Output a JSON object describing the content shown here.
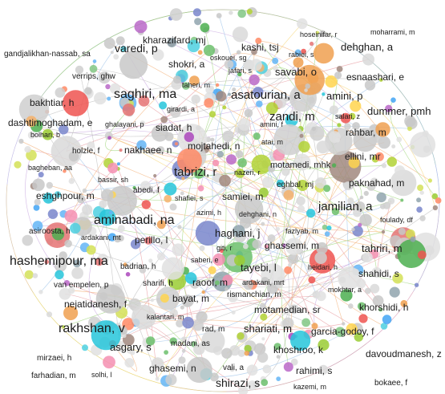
{
  "network": {
    "labels": [
      {
        "text": "moharrami, m",
        "size": "xs",
        "color": "#1a1a1a"
      },
      {
        "text": "hoseinifar, r",
        "size": "xs",
        "color": "#1a1a1a"
      },
      {
        "text": "kharazifard, mj",
        "size": "m",
        "color": "#1a1a1a"
      },
      {
        "text": "varedi, p",
        "size": "l",
        "color": "#1a1a1a"
      },
      {
        "text": "kashi, tsj",
        "size": "m",
        "color": "#1a1a1a"
      },
      {
        "text": "dehghan, a",
        "size": "m",
        "color": "#1a1a1a"
      },
      {
        "text": "gandjalikhan-nassab, sa",
        "size": "s",
        "color": "#1a1a1a"
      },
      {
        "text": "rabiei, s",
        "size": "xs",
        "color": "#1a1a1a"
      },
      {
        "text": "shokri, a",
        "size": "m",
        "color": "#1a1a1a"
      },
      {
        "text": "oskouei, sg",
        "size": "xs",
        "color": "#1a1a1a"
      },
      {
        "text": "verrips, ghw",
        "size": "s",
        "color": "#1a1a1a"
      },
      {
        "text": "jafari, s",
        "size": "xs",
        "color": "#1a1a1a"
      },
      {
        "text": "savabi, o",
        "size": "m",
        "color": "#1a1a1a"
      },
      {
        "text": "esnaashari, e",
        "size": "m",
        "color": "#1a1a1a"
      },
      {
        "text": "taheri, m",
        "size": "xs",
        "color": "#1a1a1a"
      },
      {
        "text": "saghiri, ma",
        "size": "xl",
        "color": "#1a1a1a"
      },
      {
        "text": "asatourian, a",
        "size": "l",
        "color": "#1a1a1a"
      },
      {
        "text": "amini, p",
        "size": "m",
        "color": "#1a1a1a"
      },
      {
        "text": "bakhtiar, h",
        "size": "m",
        "color": "#1a1a1a"
      },
      {
        "text": "girardi, a",
        "size": "xs",
        "color": "#1a1a1a"
      },
      {
        "text": "dummer, pmh",
        "size": "m",
        "color": "#1a1a1a"
      },
      {
        "text": "dashtimoghadam, e",
        "size": "m",
        "color": "#1a1a1a"
      },
      {
        "text": "ghalayani, p",
        "size": "xs",
        "color": "#1a1a1a"
      },
      {
        "text": "siadat, h",
        "size": "m",
        "color": "#1a1a1a"
      },
      {
        "text": "zandi, m",
        "size": "l",
        "color": "#1a1a1a"
      },
      {
        "text": "salari, z",
        "size": "xs",
        "color": "#1a1a1a"
      },
      {
        "text": "amini, f",
        "size": "xs",
        "color": "#1a1a1a"
      },
      {
        "text": "bolhari, b",
        "size": "xs",
        "color": "#1a1a1a"
      },
      {
        "text": "rahbar, m",
        "size": "m",
        "color": "#1a1a1a"
      },
      {
        "text": "atai, m",
        "size": "xs",
        "color": "#1a1a1a"
      },
      {
        "text": "holzle, f",
        "size": "s",
        "color": "#1a1a1a"
      },
      {
        "text": "nakhaee, n",
        "size": "m",
        "color": "#1a1a1a"
      },
      {
        "text": "mojtahedi, n",
        "size": "m",
        "color": "#1a1a1a"
      },
      {
        "text": "ellini, mr",
        "size": "m",
        "color": "#1a1a1a"
      },
      {
        "text": "motamedi, mhk",
        "size": "s",
        "color": "#1a1a1a"
      },
      {
        "text": "bagheban, aa",
        "size": "xs",
        "color": "#1a1a1a"
      },
      {
        "text": "tabrizi, r",
        "size": "l",
        "color": "#1a1a1a"
      },
      {
        "text": "nazeri, r",
        "size": "xs",
        "color": "#1a1a1a"
      },
      {
        "text": "bassir, sh",
        "size": "xs",
        "color": "#1a1a1a"
      },
      {
        "text": "paknahad, m",
        "size": "m",
        "color": "#1a1a1a"
      },
      {
        "text": "eshghpour, m",
        "size": "m",
        "color": "#1a1a1a"
      },
      {
        "text": "abedi, f",
        "size": "s",
        "color": "#1a1a1a"
      },
      {
        "text": "eghbal, mj",
        "size": "s",
        "color": "#1a1a1a"
      },
      {
        "text": "samiei, m",
        "size": "m",
        "color": "#1a1a1a"
      },
      {
        "text": "shafiei, s",
        "size": "xs",
        "color": "#1a1a1a"
      },
      {
        "text": "jamilian, a",
        "size": "l",
        "color": "#1a1a1a"
      },
      {
        "text": "dehghani, n",
        "size": "xs",
        "color": "#1a1a1a"
      },
      {
        "text": "aminabadi, na",
        "size": "xl",
        "color": "#1a1a1a"
      },
      {
        "text": "azimi, h",
        "size": "xs",
        "color": "#1a1a1a"
      },
      {
        "text": "foulady, df",
        "size": "xs",
        "color": "#1a1a1a"
      },
      {
        "text": "asiroosta, h",
        "size": "s",
        "color": "#1a1a1a"
      },
      {
        "text": "haghani, j",
        "size": "m",
        "color": "#1a1a1a"
      },
      {
        "text": "fazlyab, m",
        "size": "xs",
        "color": "#1a1a1a"
      },
      {
        "text": "ardakani, mt",
        "size": "xs",
        "color": "#1a1a1a"
      },
      {
        "text": "perillo, l",
        "size": "m",
        "color": "#1a1a1a"
      },
      {
        "text": "ghassemi, m",
        "size": "m",
        "color": "#1a1a1a"
      },
      {
        "text": "hashemipour, ma",
        "size": "xl",
        "color": "#1a1a1a"
      },
      {
        "text": "giti, r",
        "size": "xs",
        "color": "#1a1a1a"
      },
      {
        "text": "tahriri, m",
        "size": "m",
        "color": "#1a1a1a"
      },
      {
        "text": "tayebi, l",
        "size": "m",
        "color": "#1a1a1a"
      },
      {
        "text": "saberi, e",
        "size": "xs",
        "color": "#1a1a1a"
      },
      {
        "text": "badrian, h",
        "size": "s",
        "color": "#1a1a1a"
      },
      {
        "text": "heidari, h",
        "size": "xs",
        "color": "#1a1a1a"
      },
      {
        "text": "van empelen, p",
        "size": "s",
        "color": "#1a1a1a"
      },
      {
        "text": "shahidi, s",
        "size": "m",
        "color": "#1a1a1a"
      },
      {
        "text": "sharifi, h",
        "size": "s",
        "color": "#1a1a1a"
      },
      {
        "text": "raoof, m",
        "size": "m",
        "color": "#1a1a1a"
      },
      {
        "text": "ardakani, mrt",
        "size": "xs",
        "color": "#1a1a1a"
      },
      {
        "text": "mokhtar, a",
        "size": "xs",
        "color": "#1a1a1a"
      },
      {
        "text": "nejatidanesh, f",
        "size": "m",
        "color": "#1a1a1a"
      },
      {
        "text": "rismanchian, m",
        "size": "s",
        "color": "#1a1a1a"
      },
      {
        "text": "bayat, m",
        "size": "m",
        "color": "#1a1a1a"
      },
      {
        "text": "khorshidi, h",
        "size": "m",
        "color": "#1a1a1a"
      },
      {
        "text": "motamedian, sr",
        "size": "m",
        "color": "#1a1a1a"
      },
      {
        "text": "kalantari, m",
        "size": "xs",
        "color": "#1a1a1a"
      },
      {
        "text": "rakhshan, v",
        "size": "xl",
        "color": "#1a1a1a"
      },
      {
        "text": "rad, m",
        "size": "s",
        "color": "#1a1a1a"
      },
      {
        "text": "shariati, m",
        "size": "m",
        "color": "#1a1a1a"
      },
      {
        "text": "garcia-godoy, f",
        "size": "m",
        "color": "#1a1a1a"
      },
      {
        "text": "madani, as",
        "size": "s",
        "color": "#1a1a1a"
      },
      {
        "text": "asgary, s",
        "size": "m",
        "color": "#1a1a1a"
      },
      {
        "text": "khoshroo, k",
        "size": "m",
        "color": "#1a1a1a"
      },
      {
        "text": "davoudmanesh, z",
        "size": "m",
        "color": "#1a1a1a"
      },
      {
        "text": "mirzaei, h",
        "size": "s",
        "color": "#1a1a1a"
      },
      {
        "text": "ghasemi, n",
        "size": "m",
        "color": "#1a1a1a"
      },
      {
        "text": "farhadian, m",
        "size": "s",
        "color": "#1a1a1a"
      },
      {
        "text": "solhi, l",
        "size": "xs",
        "color": "#1a1a1a"
      },
      {
        "text": "rahimi, s",
        "size": "m",
        "color": "#1a1a1a"
      },
      {
        "text": "vali, a",
        "size": "s",
        "color": "#1a1a1a"
      },
      {
        "text": "shirazi, s",
        "size": "l",
        "color": "#1a1a1a"
      },
      {
        "text": "bokaee, f",
        "size": "s",
        "color": "#1a1a1a"
      },
      {
        "text": "kazemi, m",
        "size": "xs",
        "color": "#1a1a1a"
      }
    ]
  }
}
